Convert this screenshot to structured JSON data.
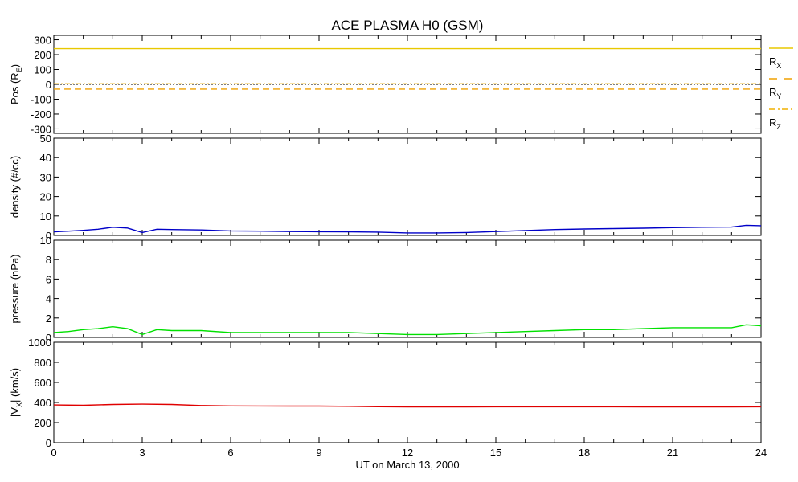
{
  "chart_data": {
    "type": "line",
    "title": "ACE PLASMA H0 (GSM)",
    "xlabel": "UT on March 13, 2000",
    "x_range": [
      0,
      24
    ],
    "x_ticks": [
      0,
      3,
      6,
      9,
      12,
      15,
      18,
      21,
      24
    ],
    "x_tick_labels": [
      "0",
      "3",
      "6",
      "9",
      "12",
      "15",
      "18",
      "21",
      "24"
    ],
    "panels": [
      {
        "ylabel_parts": [
          "Pos (R",
          "E",
          ")"
        ],
        "ylim": [
          -330,
          330
        ],
        "y_ticks": [
          -300,
          -200,
          -100,
          0,
          100,
          200,
          300
        ],
        "y_tick_labels": [
          "-300",
          "-200",
          "-100",
          "0",
          "100",
          "200",
          "300"
        ],
        "zero_line": true,
        "legend": [
          {
            "base": "R",
            "sub": "X",
            "style": "solid",
            "color": "#e8c800"
          },
          {
            "base": "R",
            "sub": "Y",
            "style": "dashed",
            "color": "#f0a000"
          },
          {
            "base": "R",
            "sub": "Z",
            "style": "dashdot",
            "color": "#f0b000"
          }
        ],
        "series": [
          {
            "label": "RX",
            "color": "#e8c800",
            "style": "solid",
            "x": [
              0,
              24
            ],
            "values": [
              240,
              240
            ]
          },
          {
            "label": "RY",
            "color": "#f0a000",
            "style": "dashed",
            "x": [
              0,
              24
            ],
            "values": [
              -32,
              -32
            ]
          },
          {
            "label": "RZ",
            "color": "#f0b000",
            "style": "dashdot",
            "x": [
              0,
              24
            ],
            "values": [
              4,
              4
            ]
          }
        ]
      },
      {
        "ylabel_parts": [
          "density (#/cc)"
        ],
        "ylim": [
          0,
          50
        ],
        "y_ticks": [
          0,
          10,
          20,
          30,
          40,
          50
        ],
        "y_tick_labels": [
          "0",
          "10",
          "20",
          "30",
          "40",
          "50"
        ],
        "series": [
          {
            "label": "density",
            "color": "#0000c8",
            "style": "solid",
            "x": [
              0,
              0.5,
              1.0,
              1.5,
              2.0,
              2.5,
              3.0,
              3.5,
              4.0,
              5.0,
              6.0,
              7.0,
              8.0,
              9.0,
              10.0,
              11.0,
              12.0,
              13.0,
              14.0,
              15.0,
              16.0,
              17.0,
              18.0,
              19.0,
              20.0,
              21.0,
              22.0,
              23.0,
              23.5,
              24.0
            ],
            "values": [
              1.8,
              2.2,
              2.6,
              3.2,
              4.2,
              3.8,
              1.5,
              3.2,
              3.0,
              2.8,
              2.3,
              2.2,
              2.0,
              1.9,
              1.8,
              1.7,
              1.3,
              1.3,
              1.5,
              2.0,
              2.5,
              3.0,
              3.3,
              3.5,
              3.7,
              4.0,
              4.2,
              4.3,
              5.2,
              5.0
            ]
          }
        ]
      },
      {
        "ylabel_parts": [
          "pressure (nPa)"
        ],
        "ylim": [
          0,
          10
        ],
        "y_ticks": [
          0,
          2,
          4,
          6,
          8,
          10
        ],
        "y_tick_labels": [
          "0",
          "2",
          "4",
          "6",
          "8",
          "10"
        ],
        "series": [
          {
            "label": "pressure",
            "color": "#00e000",
            "style": "solid",
            "x": [
              0,
              0.5,
              1.0,
              1.5,
              2.0,
              2.5,
              3.0,
              3.5,
              4.0,
              5.0,
              6.0,
              7.0,
              8.0,
              9.0,
              10.0,
              11.0,
              12.0,
              13.0,
              14.0,
              15.0,
              16.0,
              17.0,
              18.0,
              19.0,
              20.0,
              21.0,
              22.0,
              23.0,
              23.5,
              24.0
            ],
            "values": [
              0.5,
              0.6,
              0.8,
              0.9,
              1.1,
              0.9,
              0.3,
              0.8,
              0.7,
              0.7,
              0.5,
              0.5,
              0.5,
              0.5,
              0.5,
              0.4,
              0.3,
              0.3,
              0.4,
              0.5,
              0.6,
              0.7,
              0.8,
              0.8,
              0.9,
              1.0,
              1.0,
              1.0,
              1.3,
              1.2
            ]
          }
        ]
      },
      {
        "ylabel_parts": [
          "|V",
          "X",
          "| (km/s)"
        ],
        "ylim": [
          0,
          1000
        ],
        "y_ticks": [
          0,
          200,
          400,
          600,
          800,
          1000
        ],
        "y_tick_labels": [
          "0",
          "200",
          "400",
          "600",
          "800",
          "1000"
        ],
        "series": [
          {
            "label": "|VX|",
            "color": "#e00000",
            "style": "solid",
            "x": [
              0,
              1,
              2,
              3,
              4,
              5,
              6,
              7,
              8,
              9,
              10,
              11,
              12,
              13,
              14,
              15,
              16,
              17,
              18,
              19,
              20,
              21,
              22,
              23,
              24
            ],
            "values": [
              375,
              372,
              380,
              383,
              380,
              370,
              366,
              365,
              364,
              364,
              362,
              358,
              356,
              356,
              356,
              357,
              357,
              357,
              357,
              357,
              356,
              356,
              356,
              356,
              357
            ]
          }
        ]
      }
    ]
  }
}
